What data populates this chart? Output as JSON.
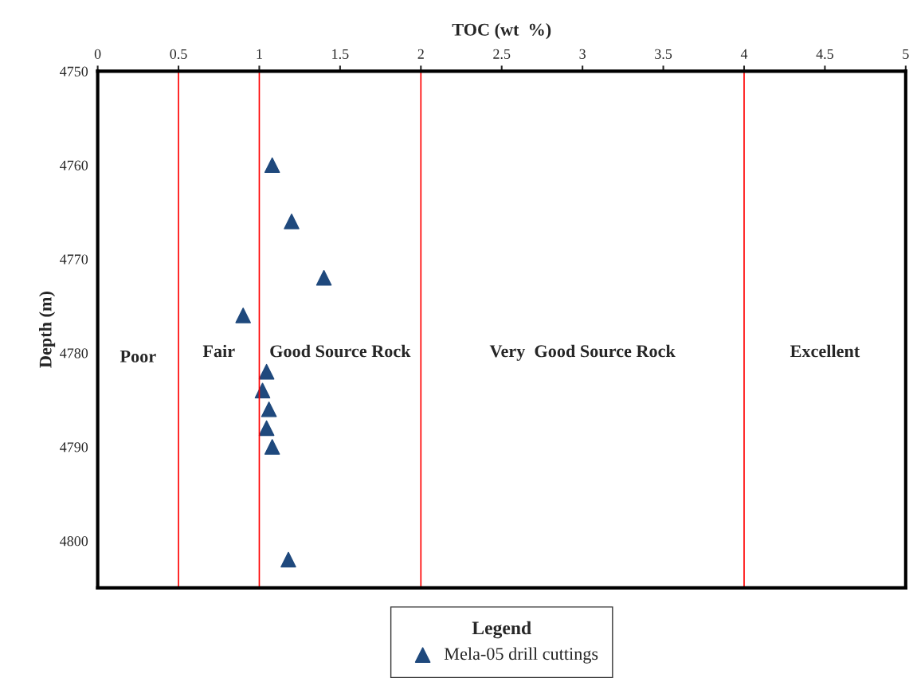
{
  "chart_data": {
    "type": "scatter",
    "xlabel": "TOC (wt  %)",
    "ylabel": "Depth (m)",
    "legend_title": "Legend",
    "x": [
      1.08,
      1.2,
      1.4,
      0.9,
      1.045,
      1.02,
      1.06,
      1.045,
      1.08,
      1.18
    ],
    "series": [
      {
        "name": "Mela-05 drill cuttings",
        "color": "#1f497d",
        "values": [
          4760,
          4766,
          4772,
          4776,
          4782,
          4784,
          4786,
          4788,
          4790,
          4802
        ]
      }
    ],
    "marker": "triangle",
    "xlim": [
      0,
      5
    ],
    "xticks": [
      0,
      0.5,
      1,
      1.5,
      2,
      2.5,
      3,
      3.5,
      4,
      4.5,
      5
    ],
    "ylim": [
      4805,
      4750
    ],
    "yticks": [
      4750,
      4760,
      4770,
      4780,
      4790,
      4800
    ],
    "grid": false,
    "legend": "bottom",
    "ref_lines": [
      {
        "axis": "x",
        "value": 0.5,
        "color": "#ff0000"
      },
      {
        "axis": "x",
        "value": 1,
        "color": "#ff0000"
      },
      {
        "axis": "x",
        "value": 2,
        "color": "#ff0000"
      },
      {
        "axis": "x",
        "value": 4,
        "color": "#ff0000"
      }
    ],
    "annotations": [
      "Poor",
      "Fair",
      "Good Source Rock",
      "Very  Good Source Rock",
      "Excellent"
    ]
  }
}
